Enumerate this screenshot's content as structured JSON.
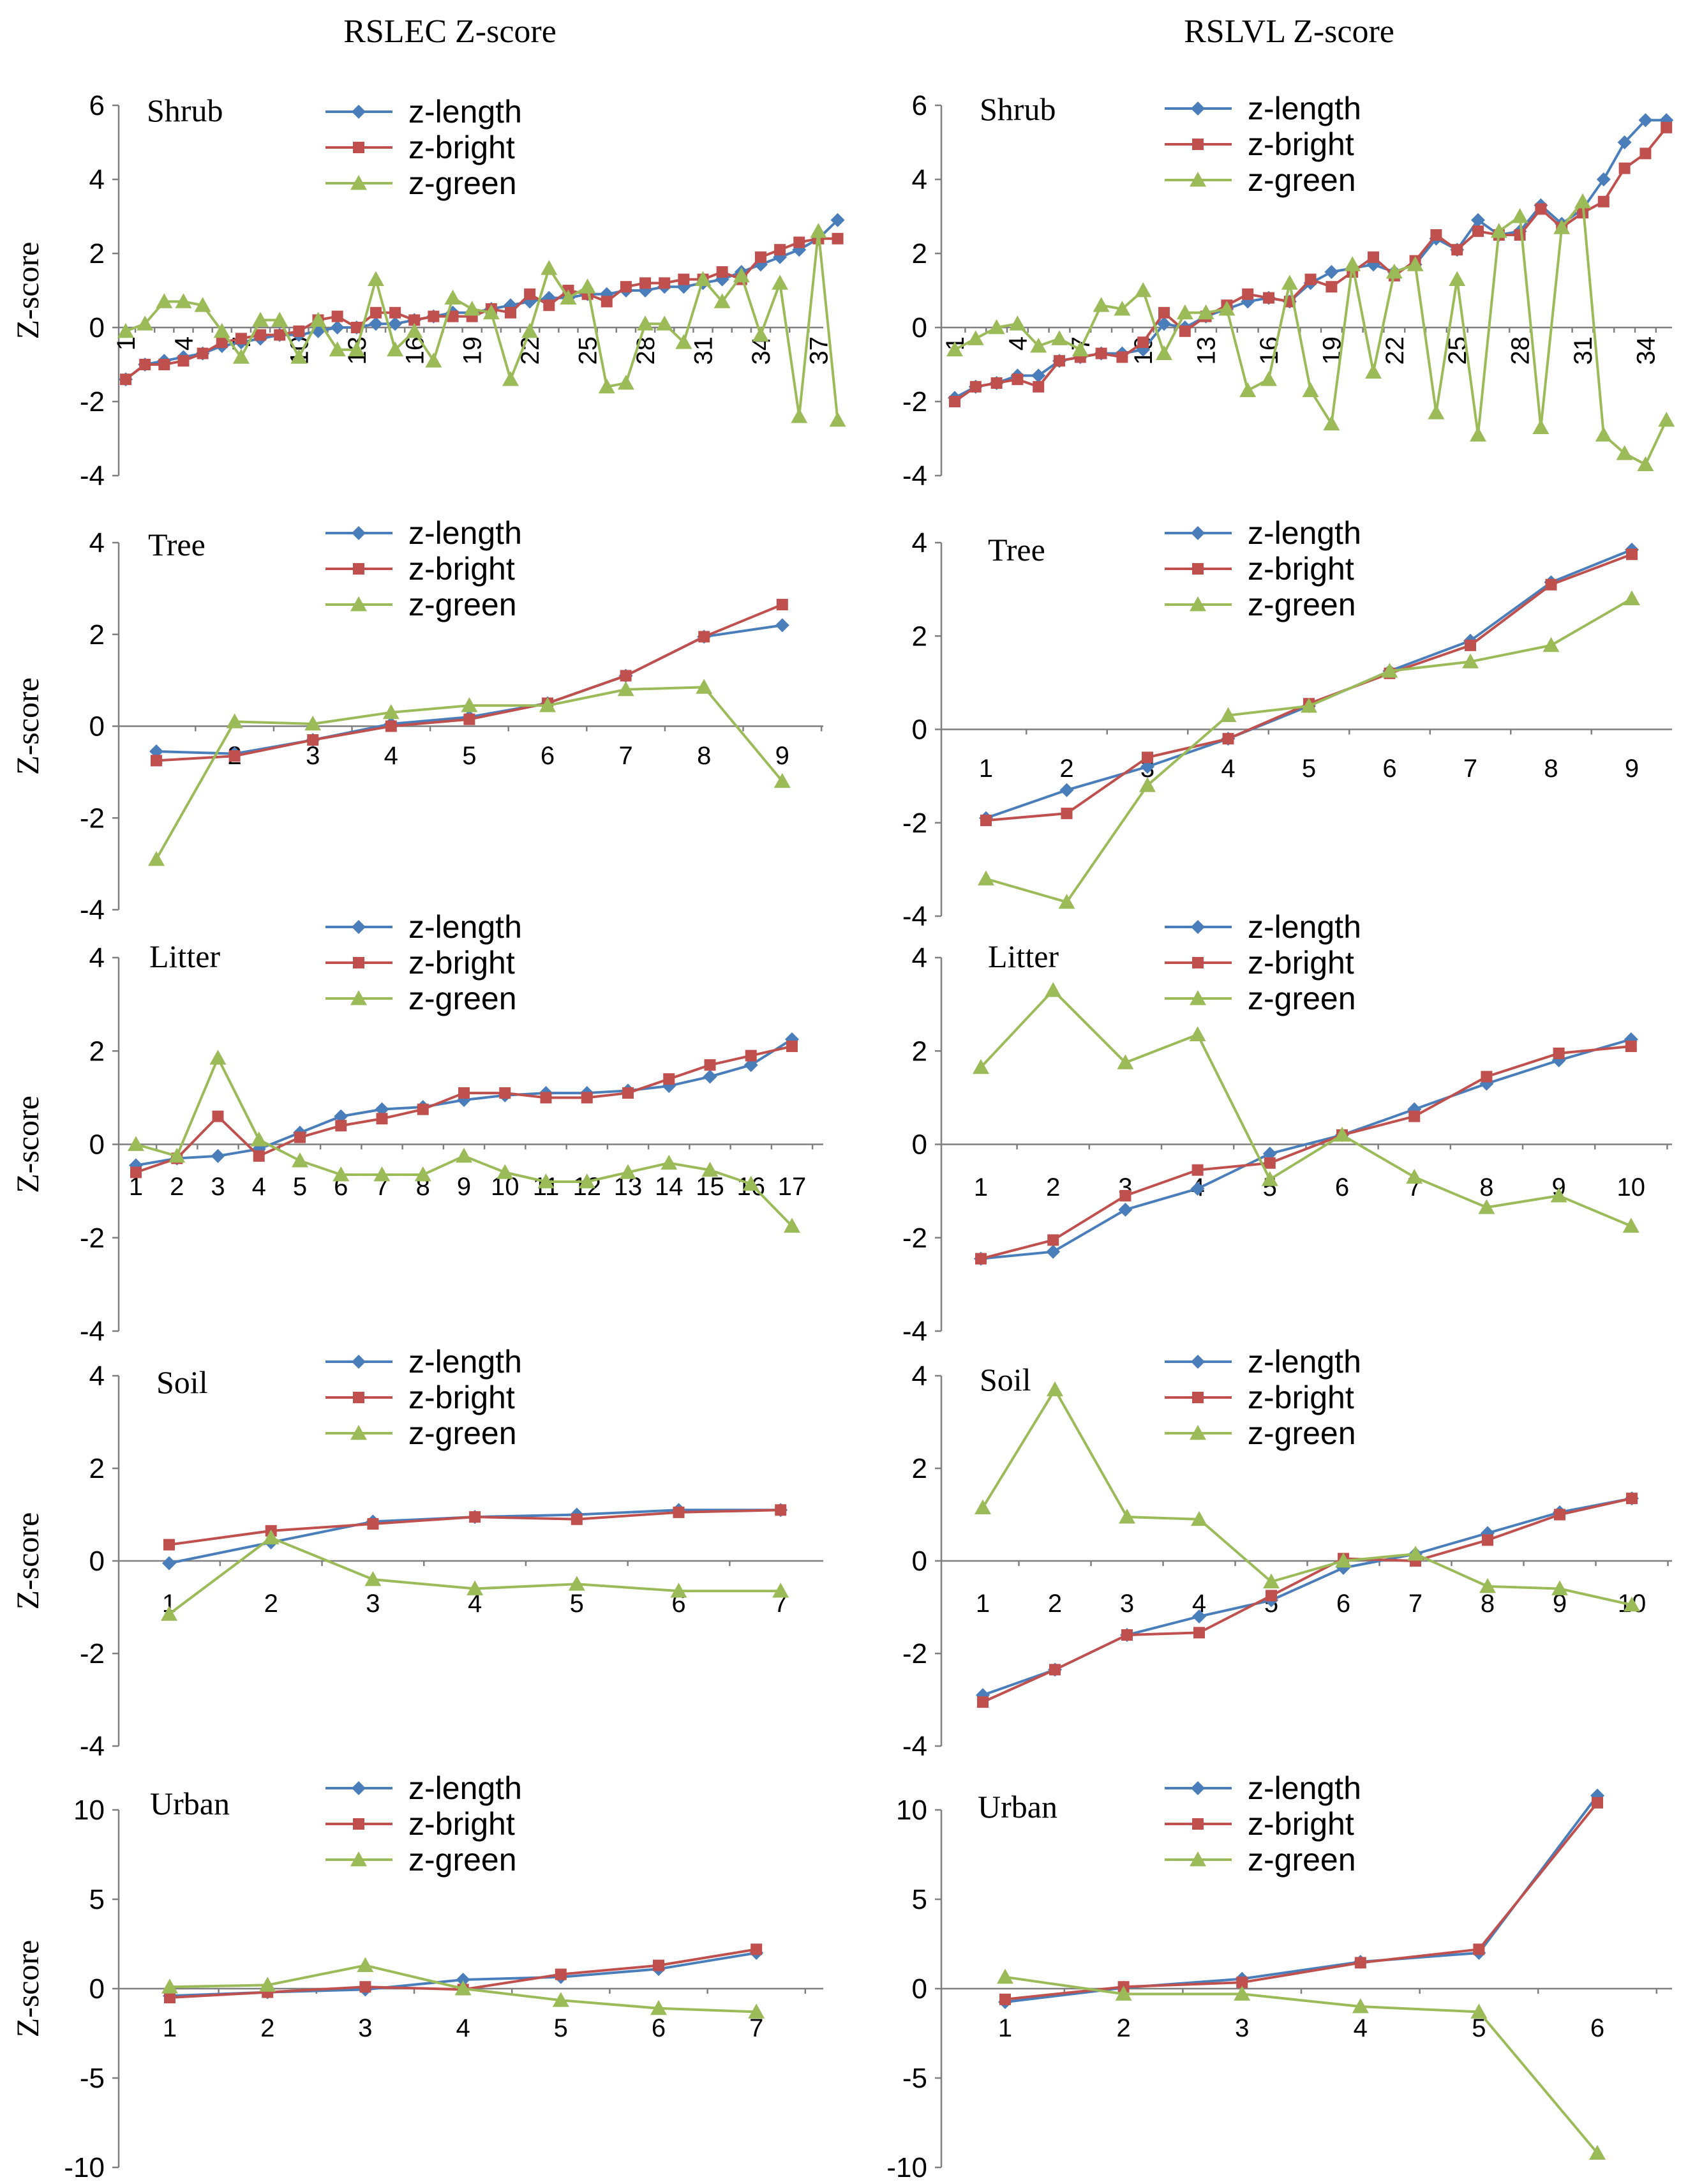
{
  "figure": {
    "column_titles": [
      "RSLEC Z-score",
      "RSLVL Z-score"
    ],
    "ylabel": "Z-score"
  },
  "colors": {
    "z-length": "#4a7ebb",
    "z-bright": "#c0504d",
    "z-green": "#9bbb59",
    "axis": "#7f7f7f"
  },
  "chart_data": [
    {
      "type": "line",
      "panel": "RSLEC Shrub",
      "column": "RSLEC Z-score",
      "title": "Shrub",
      "ylabel": "Z-score",
      "ylim": [
        -4,
        6
      ],
      "yticks": [
        -4,
        -2,
        0,
        2,
        4,
        6
      ],
      "x": [
        1,
        2,
        3,
        4,
        5,
        6,
        7,
        8,
        9,
        10,
        11,
        12,
        13,
        14,
        15,
        16,
        17,
        18,
        19,
        20,
        21,
        22,
        23,
        24,
        25,
        26,
        27,
        28,
        29,
        30,
        31,
        32,
        33,
        34,
        35,
        36,
        37,
        38
      ],
      "xtick_labels": [
        "1",
        "4",
        "7",
        "10",
        "13",
        "16",
        "19",
        "22",
        "25",
        "28",
        "31",
        "34",
        "37"
      ],
      "series": [
        {
          "name": "z-length",
          "marker": "diamond",
          "values": [
            -1.4,
            -1.0,
            -0.9,
            -0.8,
            -0.7,
            -0.5,
            -0.4,
            -0.3,
            -0.2,
            -0.2,
            -0.1,
            0.0,
            0.0,
            0.1,
            0.1,
            0.2,
            0.3,
            0.4,
            0.4,
            0.5,
            0.6,
            0.7,
            0.8,
            0.8,
            0.9,
            0.9,
            1.0,
            1.0,
            1.1,
            1.1,
            1.2,
            1.3,
            1.5,
            1.7,
            1.9,
            2.1,
            2.4,
            2.9
          ]
        },
        {
          "name": "z-bright",
          "marker": "square",
          "values": [
            -1.4,
            -1.0,
            -1.0,
            -0.9,
            -0.7,
            -0.4,
            -0.3,
            -0.2,
            -0.2,
            -0.1,
            0.2,
            0.3,
            0.0,
            0.4,
            0.4,
            0.2,
            0.3,
            0.3,
            0.3,
            0.5,
            0.4,
            0.9,
            0.6,
            1.0,
            0.9,
            0.7,
            1.1,
            1.2,
            1.2,
            1.3,
            1.3,
            1.5,
            1.3,
            1.9,
            2.1,
            2.3,
            2.4,
            2.4
          ]
        },
        {
          "name": "z-green",
          "marker": "triangle",
          "values": [
            -0.1,
            0.1,
            0.7,
            0.7,
            0.6,
            -0.1,
            -0.8,
            0.2,
            0.2,
            -0.8,
            0.2,
            -0.6,
            -0.6,
            1.3,
            -0.6,
            -0.1,
            -0.9,
            0.8,
            0.5,
            0.4,
            -1.4,
            -0.1,
            1.6,
            0.8,
            1.1,
            -1.6,
            -1.5,
            0.1,
            0.1,
            -0.4,
            1.3,
            0.7,
            1.4,
            -0.2,
            1.2,
            -2.4,
            2.6,
            -2.5
          ]
        }
      ]
    },
    {
      "type": "line",
      "panel": "RSLVL Shrub",
      "column": "RSLVL Z-score",
      "title": "Shrub",
      "ylabel": "",
      "ylim": [
        -4,
        6
      ],
      "yticks": [
        -4,
        -2,
        0,
        2,
        4,
        6
      ],
      "x": [
        1,
        2,
        3,
        4,
        5,
        6,
        7,
        8,
        9,
        10,
        11,
        12,
        13,
        14,
        15,
        16,
        17,
        18,
        19,
        20,
        21,
        22,
        23,
        24,
        25,
        26,
        27,
        28,
        29,
        30,
        31,
        32,
        33,
        34,
        35
      ],
      "xtick_labels": [
        "1",
        "4",
        "7",
        "10",
        "13",
        "16",
        "19",
        "22",
        "25",
        "28",
        "31",
        "34"
      ],
      "series": [
        {
          "name": "z-length",
          "marker": "diamond",
          "values": [
            -1.9,
            -1.6,
            -1.5,
            -1.3,
            -1.3,
            -0.9,
            -0.8,
            -0.7,
            -0.7,
            -0.6,
            0.1,
            0.0,
            0.3,
            0.5,
            0.7,
            0.8,
            0.7,
            1.2,
            1.5,
            1.6,
            1.7,
            1.5,
            1.7,
            2.4,
            2.1,
            2.9,
            2.5,
            2.6,
            3.3,
            2.8,
            3.2,
            4.0,
            5.0,
            5.6,
            5.6
          ]
        },
        {
          "name": "z-bright",
          "marker": "square",
          "values": [
            -2.0,
            -1.6,
            -1.5,
            -1.4,
            -1.6,
            -0.9,
            -0.8,
            -0.7,
            -0.8,
            -0.4,
            0.4,
            -0.1,
            0.3,
            0.6,
            0.9,
            0.8,
            0.7,
            1.3,
            1.1,
            1.5,
            1.9,
            1.4,
            1.8,
            2.5,
            2.1,
            2.6,
            2.5,
            2.5,
            3.2,
            2.7,
            3.1,
            3.4,
            4.3,
            4.7,
            5.4
          ]
        },
        {
          "name": "z-green",
          "marker": "triangle",
          "values": [
            -0.6,
            -0.3,
            0.0,
            0.1,
            -0.5,
            -0.3,
            -0.6,
            0.6,
            0.5,
            1.0,
            -0.7,
            0.4,
            0.4,
            0.5,
            -1.7,
            -1.4,
            1.2,
            -1.7,
            -2.6,
            1.7,
            -1.2,
            1.5,
            1.7,
            -2.3,
            1.3,
            -2.9,
            2.6,
            3.0,
            -2.7,
            2.7,
            3.4,
            -2.9,
            -3.4,
            -3.7,
            -2.5
          ]
        }
      ]
    },
    {
      "type": "line",
      "panel": "RSLEC Tree",
      "column": "RSLEC Z-score",
      "title": "Tree",
      "ylabel": "Z-score",
      "ylim": [
        -4,
        4
      ],
      "yticks": [
        -4,
        -2,
        0,
        2,
        4
      ],
      "x": [
        1,
        2,
        3,
        4,
        5,
        6,
        7,
        8,
        9
      ],
      "xtick_labels": [
        "1",
        "2",
        "3",
        "4",
        "5",
        "6",
        "7",
        "8",
        "9"
      ],
      "series": [
        {
          "name": "z-length",
          "marker": "diamond",
          "values": [
            -0.55,
            -0.6,
            -0.3,
            0.05,
            0.2,
            0.5,
            1.1,
            1.95,
            2.2
          ]
        },
        {
          "name": "z-bright",
          "marker": "square",
          "values": [
            -0.75,
            -0.65,
            -0.3,
            0.0,
            0.15,
            0.5,
            1.1,
            1.95,
            2.65
          ]
        },
        {
          "name": "z-green",
          "marker": "triangle",
          "values": [
            -2.9,
            0.1,
            0.05,
            0.3,
            0.45,
            0.45,
            0.8,
            0.85,
            -1.2
          ]
        }
      ]
    },
    {
      "type": "line",
      "panel": "RSLVL Tree",
      "column": "RSLVL Z-score",
      "title": "Tree",
      "ylabel": "",
      "ylim": [
        -4,
        4
      ],
      "yticks": [
        -4,
        -2,
        0,
        2,
        4
      ],
      "x": [
        1,
        2,
        3,
        4,
        5,
        6,
        7,
        8,
        9
      ],
      "xtick_labels": [
        "1",
        "2",
        "3",
        "4",
        "5",
        "6",
        "7",
        "8",
        "9"
      ],
      "series": [
        {
          "name": "z-length",
          "marker": "diamond",
          "values": [
            -1.9,
            -1.3,
            -0.8,
            -0.2,
            0.5,
            1.25,
            1.9,
            3.15,
            3.85
          ]
        },
        {
          "name": "z-bright",
          "marker": "square",
          "values": [
            -1.95,
            -1.8,
            -0.6,
            -0.2,
            0.55,
            1.2,
            1.8,
            3.1,
            3.75
          ]
        },
        {
          "name": "z-green",
          "marker": "triangle",
          "values": [
            -3.2,
            -3.7,
            -1.2,
            0.3,
            0.5,
            1.25,
            1.45,
            1.8,
            2.8
          ]
        }
      ]
    },
    {
      "type": "line",
      "panel": "RSLEC Litter",
      "column": "RSLEC Z-score",
      "title": "Litter",
      "ylabel": "Z-score",
      "ylim": [
        -4,
        4
      ],
      "yticks": [
        -4,
        -2,
        0,
        2,
        4
      ],
      "x": [
        1,
        2,
        3,
        4,
        5,
        6,
        7,
        8,
        9,
        10,
        11,
        12,
        13,
        14,
        15,
        16,
        17
      ],
      "xtick_labels": [
        "1",
        "2",
        "3",
        "4",
        "5",
        "6",
        "7",
        "8",
        "9",
        "10",
        "11",
        "12",
        "13",
        "14",
        "15",
        "16",
        "17"
      ],
      "series": [
        {
          "name": "z-length",
          "marker": "diamond",
          "values": [
            -0.45,
            -0.3,
            -0.25,
            -0.1,
            0.25,
            0.6,
            0.75,
            0.8,
            0.95,
            1.05,
            1.1,
            1.1,
            1.15,
            1.25,
            1.45,
            1.7,
            2.25
          ]
        },
        {
          "name": "z-bright",
          "marker": "square",
          "values": [
            -0.6,
            -0.3,
            0.6,
            -0.25,
            0.15,
            0.4,
            0.55,
            0.75,
            1.1,
            1.1,
            1.0,
            1.0,
            1.1,
            1.4,
            1.7,
            1.9,
            2.1
          ]
        },
        {
          "name": "z-green",
          "marker": "triangle",
          "values": [
            0.0,
            -0.25,
            1.85,
            0.1,
            -0.35,
            -0.65,
            -0.65,
            -0.65,
            -0.25,
            -0.6,
            -0.8,
            -0.8,
            -0.6,
            -0.4,
            -0.55,
            -0.85,
            -1.75
          ]
        }
      ]
    },
    {
      "type": "line",
      "panel": "RSLVL Litter",
      "column": "RSLVL Z-score",
      "title": "Litter",
      "ylabel": "",
      "ylim": [
        -4,
        4
      ],
      "yticks": [
        -4,
        -2,
        0,
        2,
        4
      ],
      "x": [
        1,
        2,
        3,
        4,
        5,
        6,
        7,
        8,
        9,
        10
      ],
      "xtick_labels": [
        "1",
        "2",
        "3",
        "4",
        "5",
        "6",
        "7",
        "8",
        "9",
        "10"
      ],
      "series": [
        {
          "name": "z-length",
          "marker": "diamond",
          "values": [
            -2.45,
            -2.3,
            -1.4,
            -0.95,
            -0.2,
            0.2,
            0.75,
            1.3,
            1.8,
            2.25
          ]
        },
        {
          "name": "z-bright",
          "marker": "square",
          "values": [
            -2.45,
            -2.05,
            -1.1,
            -0.55,
            -0.4,
            0.2,
            0.6,
            1.45,
            1.95,
            2.1
          ]
        },
        {
          "name": "z-green",
          "marker": "triangle",
          "values": [
            1.65,
            3.3,
            1.75,
            2.35,
            -0.75,
            0.2,
            -0.7,
            -1.35,
            -1.1,
            -1.75
          ]
        }
      ]
    },
    {
      "type": "line",
      "panel": "RSLEC Soil",
      "column": "RSLEC Z-score",
      "title": "Soil",
      "ylabel": "Z-score",
      "ylim": [
        -4,
        4
      ],
      "yticks": [
        -4,
        -2,
        0,
        2,
        4
      ],
      "x": [
        1,
        2,
        3,
        4,
        5,
        6,
        7
      ],
      "xtick_labels": [
        "1",
        "2",
        "3",
        "4",
        "5",
        "6",
        "7"
      ],
      "series": [
        {
          "name": "z-length",
          "marker": "diamond",
          "values": [
            -0.05,
            0.4,
            0.85,
            0.95,
            1.0,
            1.1,
            1.1
          ]
        },
        {
          "name": "z-bright",
          "marker": "square",
          "values": [
            0.35,
            0.65,
            0.8,
            0.95,
            0.9,
            1.05,
            1.1
          ]
        },
        {
          "name": "z-green",
          "marker": "triangle",
          "values": [
            -1.15,
            0.5,
            -0.4,
            -0.6,
            -0.5,
            -0.65,
            -0.65
          ]
        }
      ]
    },
    {
      "type": "line",
      "panel": "RSLVL Soil",
      "column": "RSLVL Z-score",
      "title": "Soil",
      "ylabel": "",
      "ylim": [
        -4,
        4
      ],
      "yticks": [
        -4,
        -2,
        0,
        2,
        4
      ],
      "x": [
        1,
        2,
        3,
        4,
        5,
        6,
        7,
        8,
        9,
        10
      ],
      "xtick_labels": [
        "1",
        "2",
        "3",
        "4",
        "5",
        "6",
        "7",
        "8",
        "9",
        "10"
      ],
      "series": [
        {
          "name": "z-length",
          "marker": "diamond",
          "values": [
            -2.9,
            -2.35,
            -1.6,
            -1.2,
            -0.85,
            -0.15,
            0.15,
            0.6,
            1.05,
            1.35
          ]
        },
        {
          "name": "z-bright",
          "marker": "square",
          "values": [
            -3.05,
            -2.35,
            -1.6,
            -1.55,
            -0.75,
            0.05,
            0.0,
            0.45,
            1.0,
            1.35
          ]
        },
        {
          "name": "z-green",
          "marker": "triangle",
          "values": [
            1.15,
            3.7,
            0.95,
            0.9,
            -0.45,
            0.0,
            0.15,
            -0.55,
            -0.6,
            -0.95
          ]
        }
      ]
    },
    {
      "type": "line",
      "panel": "RSLEC Urban",
      "column": "RSLEC Z-score",
      "title": "Urban",
      "ylabel": "Z-score",
      "ylim": [
        -10,
        10
      ],
      "yticks": [
        -10,
        -5,
        0,
        5,
        10
      ],
      "x": [
        1,
        2,
        3,
        4,
        5,
        6,
        7
      ],
      "xtick_labels": [
        "1",
        "2",
        "3",
        "4",
        "5",
        "6",
        "7"
      ],
      "series": [
        {
          "name": "z-length",
          "marker": "diamond",
          "values": [
            -0.4,
            -0.2,
            -0.05,
            0.5,
            0.65,
            1.1,
            2.0
          ]
        },
        {
          "name": "z-bright",
          "marker": "square",
          "values": [
            -0.5,
            -0.2,
            0.1,
            -0.05,
            0.8,
            1.3,
            2.2
          ]
        },
        {
          "name": "z-green",
          "marker": "triangle",
          "values": [
            0.1,
            0.2,
            1.3,
            0.0,
            -0.65,
            -1.1,
            -1.3
          ]
        }
      ]
    },
    {
      "type": "line",
      "panel": "RSLVL Urban",
      "column": "RSLVL Z-score",
      "title": "Urban",
      "ylabel": "",
      "ylim": [
        -10,
        10
      ],
      "yticks": [
        -10,
        -5,
        0,
        5,
        10
      ],
      "x": [
        1,
        2,
        3,
        4,
        5,
        6
      ],
      "xtick_labels": [
        "1",
        "2",
        "3",
        "4",
        "5",
        "6"
      ],
      "series": [
        {
          "name": "z-length",
          "marker": "diamond",
          "values": [
            -0.75,
            0.05,
            0.55,
            1.5,
            2.0,
            10.8
          ]
        },
        {
          "name": "z-bright",
          "marker": "square",
          "values": [
            -0.6,
            0.1,
            0.35,
            1.45,
            2.2,
            10.4
          ]
        },
        {
          "name": "z-green",
          "marker": "triangle",
          "values": [
            0.65,
            -0.3,
            -0.3,
            -1.0,
            -1.3,
            -9.2
          ]
        }
      ]
    }
  ]
}
